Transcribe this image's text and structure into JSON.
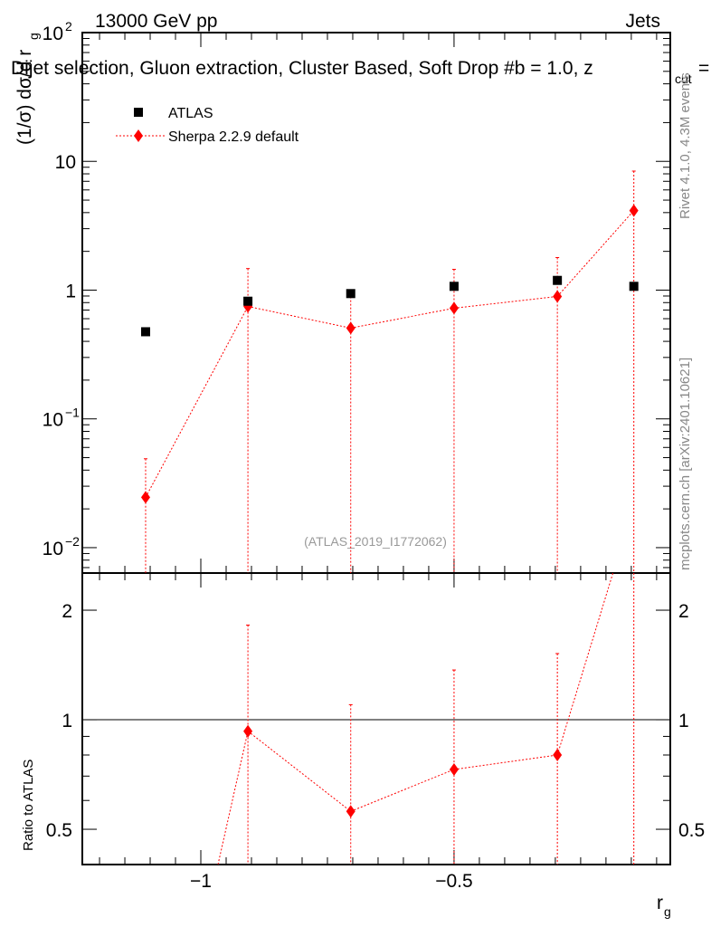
{
  "chart_data": {
    "type": "scatter",
    "header_left": "13000 GeV pp",
    "header_right": "Jets",
    "title": "Dijet selection, Gluon extraction, Cluster Based, Soft Drop #b = 1.0, z",
    "title_sub": "cut",
    "title_tail": "=",
    "ylabel": "(1/σ) dσ/d r",
    "ylabel_sub": "g",
    "xlabel": "r",
    "xlabel_sub": "g",
    "ratio_ylabel": "Ratio to ATLAS",
    "side_text_top": "Rivet 4.1.0,  4.3M events",
    "side_text_bottom": "mcplots.cern.ch [arXiv:2401.10621]",
    "analysis_label": "(ATLAS_2019_I1772062)",
    "xlim": [
      -1.234,
      -0.073
    ],
    "ylim": [
      0.00635,
      100
    ],
    "ratio_ylim": [
      0.4,
      2.53
    ],
    "yscale": "log",
    "x_ticks": [
      {
        "v": -1,
        "label": "−1"
      },
      {
        "v": -0.5,
        "label": "−0.5"
      }
    ],
    "y_ticks": [
      {
        "v": 100,
        "label": "10",
        "exp": "2"
      },
      {
        "v": 10,
        "label": "10",
        "exp": ""
      },
      {
        "v": 1,
        "label": "1",
        "exp": ""
      },
      {
        "v": 0.1,
        "label": "10",
        "exp": "−1"
      },
      {
        "v": 0.01,
        "label": "10",
        "exp": "−2"
      }
    ],
    "ratio_ticks": [
      {
        "v": 2,
        "label": "2"
      },
      {
        "v": 1,
        "label": "1"
      },
      {
        "v": 0.5,
        "label": "0.5"
      }
    ],
    "legend_position": "top-left",
    "series": [
      {
        "name": "ATLAS",
        "color": "#000000",
        "marker": "square",
        "x": [
          -1.109,
          -0.907,
          -0.704,
          -0.5,
          -0.296,
          -0.145
        ],
        "y": [
          0.475,
          0.82,
          0.94,
          1.07,
          1.19,
          1.07
        ]
      },
      {
        "name": "Sherpa 2.2.9 default",
        "color": "#ff0000",
        "marker": "diamond",
        "x": [
          -1.109,
          -0.907,
          -0.704,
          -0.5,
          -0.296,
          -0.145
        ],
        "y": [
          0.0246,
          0.747,
          0.507,
          0.724,
          0.893,
          4.15
        ],
        "err_up": [
          0.049,
          1.47,
          0.95,
          1.45,
          1.79,
          8.4
        ],
        "err_down": [
          0.0001,
          0.0001,
          0.0001,
          0.0001,
          0.0001,
          0.0001
        ],
        "ratio": [
          0.052,
          0.93,
          0.56,
          0.73,
          0.8,
          3.9
        ],
        "ratio_err_up": [
          0.1,
          1.82,
          1.1,
          1.37,
          1.52,
          8.0
        ],
        "ratio_err_down": [
          0.001,
          0.001,
          0.001,
          0.001,
          0.001,
          0.001
        ]
      }
    ]
  }
}
